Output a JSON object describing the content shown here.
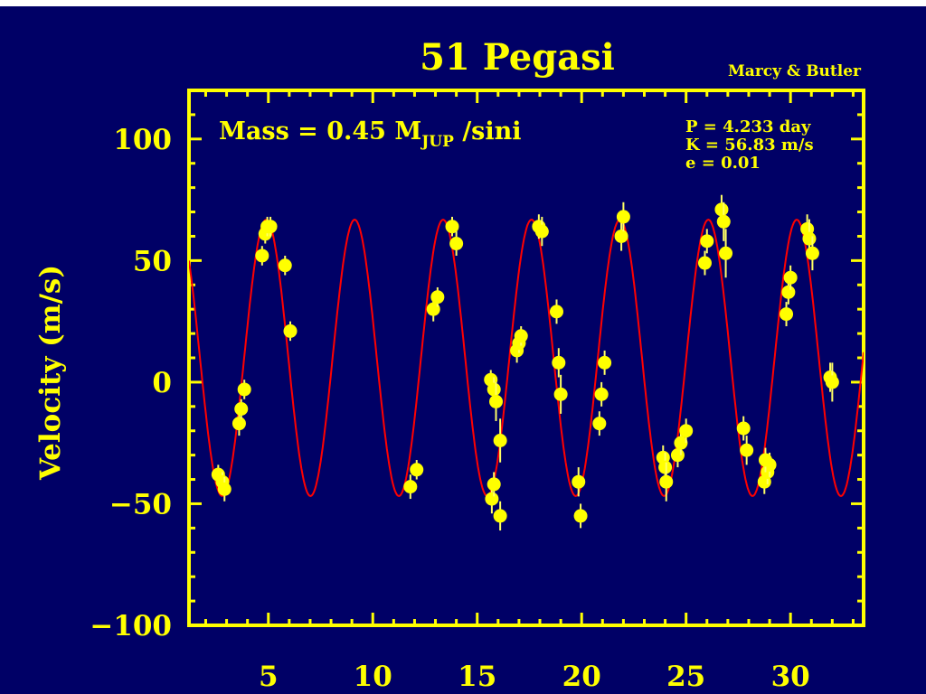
{
  "chart_data": {
    "type": "scatter",
    "title": "51 Pegasi",
    "credit": "Marcy & Butler",
    "ylabel": "Velocity  (m/s)",
    "xlabel": "",
    "xlim": [
      1.2,
      33.5
    ],
    "ylim": [
      -100,
      120
    ],
    "xticks": [
      5,
      10,
      15,
      20,
      25,
      30
    ],
    "yticks": [
      100,
      50,
      0,
      -50,
      -100
    ],
    "ytick_labels": [
      "100",
      "50",
      "0",
      "−50",
      "−100"
    ],
    "grid": false,
    "annotation_mass_prefix": "Mass = 0.45 M",
    "annotation_mass_sub": "JUP",
    "annotation_mass_suffix": " /sini",
    "params": [
      "P = 4.233 day",
      "K = 56.83 m/s",
      "e = 0.01"
    ],
    "fit": {
      "period": 4.233,
      "amplitude": 56.83,
      "offset": 10,
      "phase_zero_time": 4.9
    },
    "colors": {
      "background": "#000066",
      "axes": "#ffff00",
      "fit": "#ff0000",
      "points": "#ffff00",
      "errorbar": "#ffff66"
    },
    "series": [
      {
        "x": [
          2.6,
          2.8,
          2.9,
          3.6,
          3.7,
          3.85,
          4.7,
          4.85,
          4.95,
          5.1,
          5.8,
          6.05,
          11.8,
          12.1,
          12.9,
          13.1,
          13.8,
          14.0,
          15.65,
          15.8,
          15.9,
          16.1,
          15.7,
          15.8,
          16.1,
          16.9,
          17.0,
          17.1,
          17.95,
          18.1,
          18.8,
          18.9,
          19.0,
          19.85,
          19.95,
          20.85,
          20.95,
          21.1,
          21.9,
          22.0,
          23.9,
          24.0,
          24.05,
          24.6,
          24.75,
          25.0,
          25.9,
          26.0,
          26.7,
          26.8,
          26.9,
          27.75,
          27.9,
          28.75,
          28.9,
          29.0,
          28.8,
          29.8,
          29.9,
          30.0,
          30.8,
          30.9,
          31.05,
          31.9,
          32.0
        ],
        "y": [
          -38,
          -41,
          -44,
          -17,
          -11,
          -3,
          52,
          61,
          64,
          64,
          48,
          21,
          -43,
          -36,
          30,
          35,
          64,
          57,
          1,
          -3,
          -8,
          -24,
          -48,
          -42,
          -55,
          13,
          16,
          19,
          64,
          62,
          29,
          8,
          -5,
          -41,
          -55,
          -17,
          -5,
          8,
          60,
          68,
          -31,
          -35,
          -41,
          -30,
          -25,
          -20,
          49,
          58,
          71,
          66,
          53,
          -19,
          -28,
          -41,
          -37,
          -34,
          -32,
          28,
          37,
          43,
          63,
          59,
          53,
          2,
          0
        ],
        "err": [
          4,
          4,
          5,
          5,
          4,
          4,
          4,
          4,
          4,
          4,
          4,
          4,
          5,
          4,
          5,
          4,
          4,
          5,
          4,
          5,
          8,
          9,
          6,
          5,
          6,
          5,
          4,
          4,
          5,
          6,
          5,
          6,
          8,
          6,
          5,
          5,
          5,
          5,
          6,
          6,
          5,
          6,
          8,
          5,
          5,
          5,
          5,
          5,
          6,
          8,
          10,
          5,
          6,
          5,
          5,
          5,
          5,
          5,
          5,
          5,
          6,
          8,
          7,
          6,
          8
        ]
      }
    ]
  }
}
